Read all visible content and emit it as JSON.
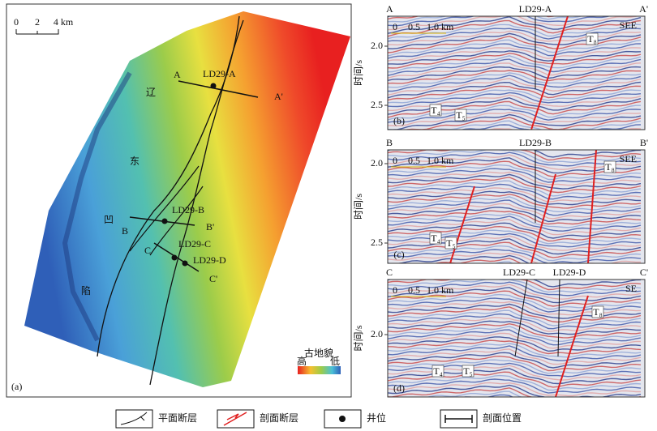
{
  "map": {
    "panel_label": "(a)",
    "scale": [
      "0",
      "2",
      "4 km"
    ],
    "section_ends": [
      "A",
      "A'",
      "B",
      "B'",
      "C",
      "C'"
    ],
    "wells": [
      "LD29-A",
      "LD29-B",
      "LD29-C",
      "LD29-D"
    ],
    "region": [
      "辽",
      "东",
      "凹",
      "陷"
    ],
    "legend_title": "古地貌",
    "legend_high": "高",
    "legend_low": "低"
  },
  "sections": [
    {
      "label": "(b)",
      "left": "A",
      "right": "A'",
      "wells": [
        "LD29-A"
      ],
      "yaxis": "时间/s",
      "yticks": [
        "2.0",
        "2.5"
      ],
      "scale": [
        "0",
        "0.5",
        "1.0 km"
      ],
      "direction": "SEE",
      "horizons": [
        "T₈",
        "T₄",
        "T₅"
      ]
    },
    {
      "label": "(c)",
      "left": "B",
      "right": "B'",
      "wells": [
        "LD29-B"
      ],
      "yaxis": "时间/s",
      "yticks": [
        "2.0",
        "2.5"
      ],
      "scale": [
        "0",
        "0.5",
        "1.0 km"
      ],
      "direction": "SEE",
      "horizons": [
        "T₈",
        "T₄",
        "T₅"
      ]
    },
    {
      "label": "(d)",
      "left": "C",
      "right": "C'",
      "wells": [
        "LD29-C",
        "LD29-D"
      ],
      "yaxis": "时间/s",
      "yticks": [
        "2.0"
      ],
      "scale": [
        "0",
        "0.5",
        "1.0 km"
      ],
      "direction": "SE",
      "horizons": [
        "T₈",
        "T₄",
        "T₅"
      ]
    }
  ],
  "legend": [
    "平面断层",
    "剖面断层",
    "井位",
    "剖面位置"
  ]
}
